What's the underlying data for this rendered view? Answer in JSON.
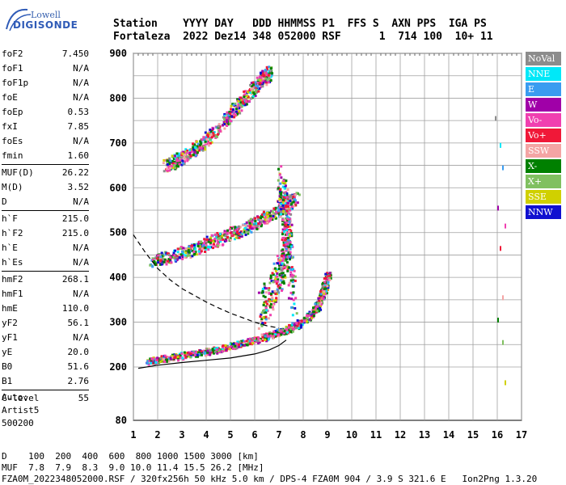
{
  "logo": {
    "line1": "Lowell",
    "line2": "DIGISONDE"
  },
  "header": {
    "line1": "Station    YYYY DAY   DDD HHMMSS P1  FFS S  AXN PPS  IGA PS",
    "line2": "Fortaleza  2022 Dez14 348 052000 RSF      1  714 100  10+ 11"
  },
  "params": {
    "group1": [
      {
        "k": "foF2",
        "v": "7.450"
      },
      {
        "k": "foF1",
        "v": "N/A"
      },
      {
        "k": "foF1p",
        "v": "N/A"
      },
      {
        "k": "foE",
        "v": "N/A"
      },
      {
        "k": "foEp",
        "v": "0.53"
      },
      {
        "k": "fxI",
        "v": "7.85"
      },
      {
        "k": "foEs",
        "v": "N/A"
      },
      {
        "k": "fmin",
        "v": "1.60"
      }
    ],
    "group2": [
      {
        "k": "MUF(D)",
        "v": "26.22"
      },
      {
        "k": "M(D)",
        "v": "3.52"
      },
      {
        "k": "D",
        "v": "N/A"
      }
    ],
    "group3": [
      {
        "k": "h`F",
        "v": "215.0"
      },
      {
        "k": "h`F2",
        "v": "215.0"
      },
      {
        "k": "h`E",
        "v": "N/A"
      },
      {
        "k": "h`Es",
        "v": "N/A"
      }
    ],
    "group4": [
      {
        "k": "hmF2",
        "v": "268.1"
      },
      {
        "k": "hmF1",
        "v": "N/A"
      },
      {
        "k": "hmE",
        "v": "110.0"
      },
      {
        "k": "yF2",
        "v": "56.1"
      },
      {
        "k": "yF1",
        "v": "N/A"
      },
      {
        "k": "yE",
        "v": "20.0"
      },
      {
        "k": "B0",
        "v": "51.6"
      },
      {
        "k": "B1",
        "v": "2.76"
      }
    ],
    "group5": [
      {
        "k": "C-level",
        "v": "55"
      }
    ]
  },
  "auto": {
    "line1": "Auto:",
    "line2": "Artist5",
    "line3": "500200"
  },
  "footer": {
    "line1": "D    100  200  400  600  800 1000 1500 3000 [km]",
    "line2": "MUF  7.8  7.9  8.3  9.0 10.0 11.4 15.5 26.2 [MHz]",
    "line3": "FZA0M_2022348052000.RSF / 320fx256h 50 kHz 5.0 km / DPS-4 FZA0M 904 / 3.9 S 321.6 E   Ion2Png 1.3.20"
  },
  "legend": [
    {
      "label": "NoVal",
      "color": "#8c8c8c"
    },
    {
      "label": "NNE",
      "color": "#00e8f8"
    },
    {
      "label": "E",
      "color": "#3a9cf0"
    },
    {
      "label": "W",
      "color": "#a000a8"
    },
    {
      "label": "Vo-",
      "color": "#f040b0"
    },
    {
      "label": "Vo+",
      "color": "#f01838"
    },
    {
      "label": "SSW",
      "color": "#f4a4a4"
    },
    {
      "label": "X-",
      "color": "#008000"
    },
    {
      "label": "X+",
      "color": "#80c060"
    },
    {
      "label": "SSE",
      "color": "#d0d000"
    },
    {
      "label": "NNW",
      "color": "#1010d0"
    }
  ],
  "chart_data": {
    "type": "scatter",
    "title": "",
    "xlabel": "",
    "ylabel": "",
    "xlim": [
      1,
      17
    ],
    "ylim": [
      80,
      900
    ],
    "xticks": [
      "1",
      "2",
      "3",
      "4",
      "5",
      "6",
      "7",
      "8",
      "9",
      "10",
      "11",
      "12",
      "13",
      "14",
      "15",
      "16",
      "17"
    ],
    "yticks": [
      {
        "v": 80,
        "t": "80"
      },
      {
        "v": 200,
        "t": "200"
      },
      {
        "v": 300,
        "t": "300"
      },
      {
        "v": 400,
        "t": "400"
      },
      {
        "v": 500,
        "t": "500"
      },
      {
        "v": 600,
        "t": "600"
      },
      {
        "v": 700,
        "t": "700"
      },
      {
        "v": 800,
        "t": "800"
      },
      {
        "v": 900,
        "t": "900"
      }
    ],
    "grid": true,
    "legend_position": "right",
    "series": [
      {
        "color": "#000000",
        "style": "solid",
        "points": [
          [
            1.2,
            197
          ],
          [
            2,
            204
          ],
          [
            3,
            210
          ],
          [
            4,
            215
          ],
          [
            5,
            220
          ],
          [
            6,
            229
          ],
          [
            6.6,
            238
          ],
          [
            7,
            248
          ],
          [
            7.3,
            260
          ]
        ]
      },
      {
        "color": "#000000",
        "style": "dashed",
        "points": [
          [
            1.0,
            495
          ],
          [
            1.5,
            455
          ],
          [
            2,
            420
          ],
          [
            2.5,
            395
          ],
          [
            3,
            375
          ],
          [
            3.5,
            360
          ],
          [
            4,
            345
          ],
          [
            4.5,
            332
          ],
          [
            5,
            320
          ],
          [
            5.5,
            310
          ],
          [
            6,
            300
          ],
          [
            6.5,
            292
          ],
          [
            7,
            287
          ]
        ]
      }
    ],
    "traces": [
      {
        "name": "F-layer trace",
        "points": [
          [
            1.6,
            213
          ],
          [
            2,
            218
          ],
          [
            3,
            227
          ],
          [
            4,
            236
          ],
          [
            5,
            248
          ],
          [
            6,
            262
          ],
          [
            6.8,
            276
          ],
          [
            7.5,
            290
          ],
          [
            8,
            305
          ],
          [
            8.5,
            330
          ],
          [
            8.8,
            370
          ],
          [
            9,
            410
          ]
        ]
      },
      {
        "name": "2nd hop",
        "points": [
          [
            1.7,
            440
          ],
          [
            2.5,
            448
          ],
          [
            3.5,
            466
          ],
          [
            4.5,
            488
          ],
          [
            5.5,
            510
          ],
          [
            6.3,
            532
          ],
          [
            7,
            552
          ],
          [
            7.7,
            582
          ]
        ]
      },
      {
        "name": "3rd hop",
        "points": [
          [
            2.3,
            650
          ],
          [
            3,
            670
          ],
          [
            3.8,
            700
          ],
          [
            4.5,
            735
          ],
          [
            5.2,
            780
          ],
          [
            5.8,
            815
          ],
          [
            6.3,
            845
          ],
          [
            6.6,
            860
          ]
        ]
      },
      {
        "name": "spread",
        "points": [
          [
            6.2,
            330
          ],
          [
            6.8,
            380
          ],
          [
            7.2,
            450
          ],
          [
            7.4,
            520
          ],
          [
            7.0,
            610
          ],
          [
            7.6,
            350
          ]
        ]
      }
    ],
    "side_points": [
      [
        15.9,
        760
      ],
      [
        16.1,
        700
      ],
      [
        16.2,
        650
      ],
      [
        16.0,
        560
      ],
      [
        16.3,
        520
      ],
      [
        16.1,
        470
      ],
      [
        16.2,
        360
      ],
      [
        16.0,
        310
      ],
      [
        16.2,
        260
      ],
      [
        16.3,
        170
      ]
    ]
  }
}
